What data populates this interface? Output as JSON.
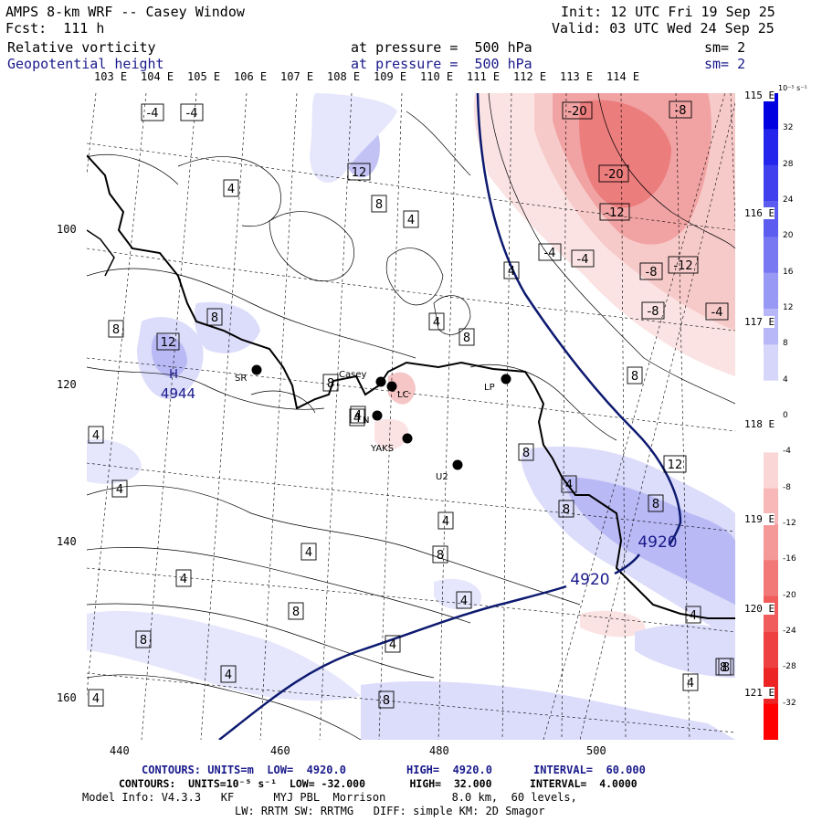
{
  "header": {
    "title": "AMPS 8-km WRF -- Casey Window",
    "init": "Init: 12 UTC Fri 19 Sep 25",
    "fcst": "Fcst:  111 h",
    "valid": "Valid: 03 UTC Wed 24 Sep 25",
    "field1": "Relative vorticity",
    "field2": "Geopotential height",
    "pressure1": "at pressure =  500 hPa",
    "pressure2": "at pressure =  500 hPa",
    "sm1": "sm= 2",
    "sm2": "sm= 2"
  },
  "lon_labels": [
    "103 E",
    "104 E",
    "105 E",
    "106 E",
    "107 E",
    "108 E",
    "109 E",
    "110 E",
    "111 E",
    "112 E",
    "113 E",
    "114 E"
  ],
  "lat_labels": [
    "115 E",
    "116 E",
    "117 E",
    "118 E",
    "119 E",
    "120 E",
    "121 E"
  ],
  "x_ticks": [
    "440",
    "460",
    "480",
    "500"
  ],
  "y_ticks": [
    "100",
    "120",
    "140",
    "160"
  ],
  "colorbar": {
    "unit": "10⁻⁵ s⁻¹",
    "labels": [
      "32",
      "28",
      "24",
      "20",
      "16",
      "12",
      "8",
      "4",
      "0",
      "-4",
      "-8",
      "-12",
      "-16",
      "-20",
      "-24",
      "-28",
      "-32"
    ]
  },
  "stations": [
    {
      "code": "SR",
      "label": "SR"
    },
    {
      "code": "Casey",
      "label": "Casey"
    },
    {
      "code": "N",
      "label": "N"
    },
    {
      "code": "YAKS",
      "label": "YAKS"
    },
    {
      "code": "LC",
      "label": "LC"
    },
    {
      "code": "U2",
      "label": "U2"
    },
    {
      "code": "LP",
      "label": "LP"
    }
  ],
  "contour_labels": {
    "high": {
      "letter": "H",
      "value": "4944"
    },
    "height_4920_a": "4920",
    "height_4920_b": "4920",
    "boxed": [
      "-4",
      "-4",
      "-20",
      "-8",
      "12",
      "4",
      "-20",
      "-12",
      "8",
      "4",
      "-12",
      "-4",
      "-4",
      "-8",
      "4",
      "-8",
      "-4",
      "8",
      "8",
      "12",
      "4",
      "8",
      "8",
      "4",
      "4",
      "8",
      "4",
      "4",
      "8",
      "12",
      "8",
      "4",
      "8",
      "4",
      "8",
      "4",
      "4",
      "8",
      "4",
      "8",
      "4",
      "4",
      "8",
      "8",
      "4",
      "4",
      "8",
      "4"
    ]
  },
  "footer": {
    "line1_a": "CONTOURS: UNITS=m  LOW=  4920.0",
    "line1_b": "HIGH=  4920.0",
    "line1_c": "INTERVAL=  60.000",
    "line2": "CONTOURS:  UNITS=10⁻⁵ s⁻¹  LOW= -32.000       HIGH=  32.000      INTERVAL=  4.0000",
    "line3": "Model Info: V4.3.3   KF      MYJ PBL  Morrison          8.0 km,  60 levels,",
    "line4": "LW: RRTM SW: RRTMG   DIFF: simple KM: 2D Smagor"
  },
  "colors": {
    "cb_blue": "#0000e0",
    "cb_red": "#ff0000",
    "height_line": "#0d1a70",
    "footer_blue": "#1a1a8c"
  }
}
